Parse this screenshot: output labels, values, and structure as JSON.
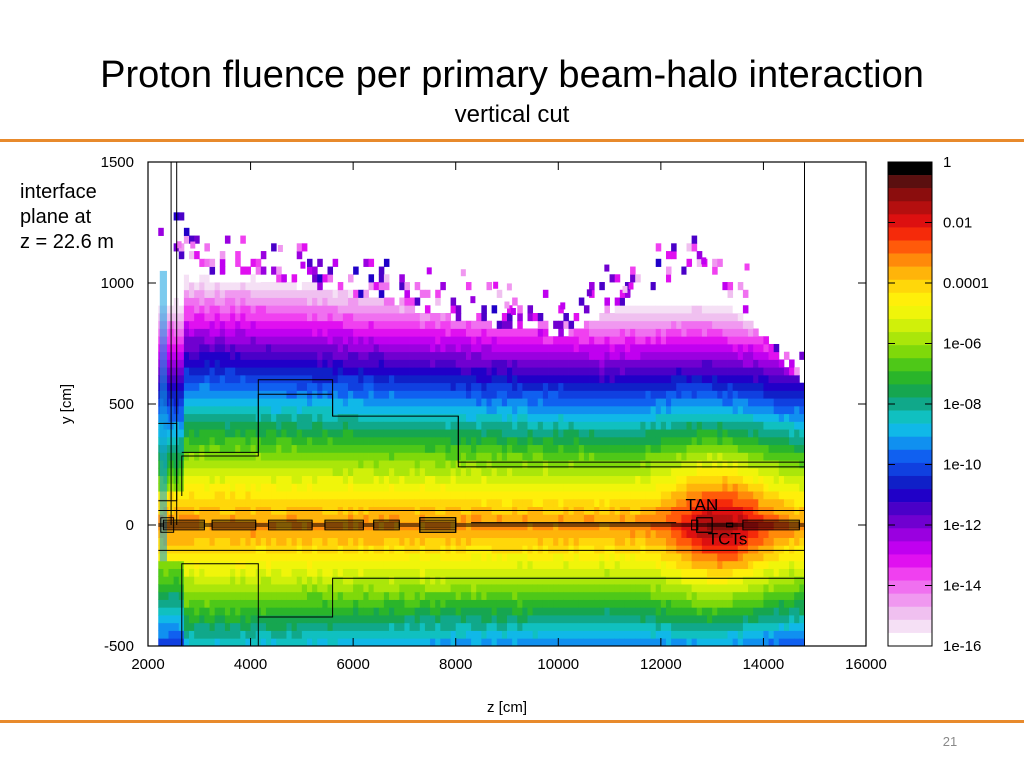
{
  "slide": {
    "title": "Proton fluence per primary beam-halo interaction",
    "subtitle": "vertical cut",
    "side_note": [
      "interface",
      "plane at",
      "z = 22.6 m"
    ],
    "page_number": "21"
  },
  "colors": {
    "accent_rule": "#e88a2c",
    "outline": "#000000"
  },
  "chart_data": {
    "type": "heatmap",
    "title": "Proton fluence per primary beam-halo interaction",
    "subtitle": "vertical cut",
    "xlabel": "z [cm]",
    "ylabel": "y [cm]",
    "xlim": [
      2000,
      16000
    ],
    "ylim": [
      -500,
      1500
    ],
    "x_ticks": [
      2000,
      4000,
      6000,
      8000,
      10000,
      12000,
      14000,
      16000
    ],
    "x_tick_labels": [
      "2000",
      "4000",
      "6000",
      "8000",
      "10000",
      "12000",
      "14000",
      "16000"
    ],
    "y_ticks": [
      -500,
      0,
      500,
      1000,
      1500
    ],
    "y_tick_labels": [
      "-500",
      "0",
      "500",
      "1000",
      "1500"
    ],
    "colorbar": {
      "scale": "log",
      "range": [
        1e-16,
        1
      ],
      "tick_labels": [
        "1",
        "0.01",
        "0.0001",
        "1e-06",
        "1e-08",
        "1e-10",
        "1e-12",
        "1e-14",
        "1e-16"
      ],
      "levels": [
        "#000000",
        "#5a0f0f",
        "#8b0d0d",
        "#b50f0f",
        "#dd1010",
        "#f52a0a",
        "#ff5a0a",
        "#ff8a0a",
        "#ffb40a",
        "#ffd70a",
        "#ffef0a",
        "#f0f50a",
        "#d0f00a",
        "#aae60a",
        "#7fd90a",
        "#4ec818",
        "#2ab52a",
        "#16a650",
        "#10a88a",
        "#10c0c0",
        "#10b8e8",
        "#1090f0",
        "#1060f0",
        "#1040e0",
        "#1020c8",
        "#2000c8",
        "#4a00c8",
        "#7000d0",
        "#9a00e0",
        "#c000f0",
        "#e010f0",
        "#f040f0",
        "#f070f0",
        "#f098f0",
        "#f0c0f0",
        "#f5e0f5",
        "#ffffff"
      ]
    },
    "annotations": [
      {
        "text": "TAN",
        "z": 12800,
        "y": 60
      },
      {
        "text": "TCTs",
        "z": 13300,
        "y": -80
      }
    ],
    "features": {
      "beam_pipe_y": 0,
      "halo_envelope": [
        {
          "z": 2200,
          "y_top": 1150,
          "y_bottom": -500
        },
        {
          "z": 3200,
          "y_top": 1050,
          "y_bottom": -450
        },
        {
          "z": 5500,
          "y_top": 980,
          "y_bottom": -440
        },
        {
          "z": 8000,
          "y_top": 850,
          "y_bottom": -430
        },
        {
          "z": 10000,
          "y_top": 780,
          "y_bottom": -430
        },
        {
          "z": 12700,
          "y_top": 1080,
          "y_bottom": -450
        },
        {
          "z": 14800,
          "y_top": 560,
          "y_bottom": -450
        }
      ],
      "hot_spot": {
        "z": 13100,
        "y": 0,
        "value": 0.01
      }
    }
  }
}
